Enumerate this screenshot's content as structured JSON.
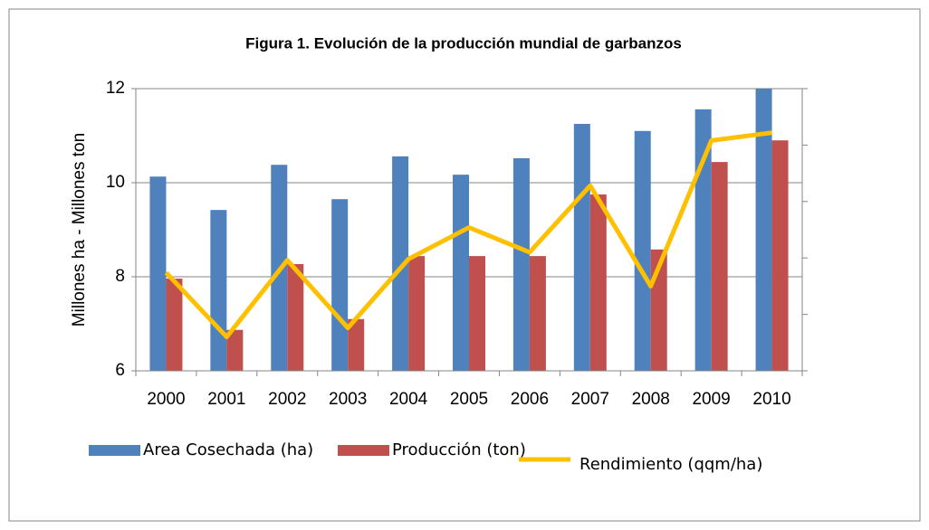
{
  "chart_data": {
    "type": "bar_line",
    "title": "Figura 1. Evolución  de la producción mundial de garbanzos",
    "ylabel": "Millones ha - Millones ton",
    "categories": [
      "2000",
      "2001",
      "2002",
      "2003",
      "2004",
      "2005",
      "2006",
      "2007",
      "2008",
      "2009",
      "2010"
    ],
    "series": [
      {
        "name": "Area Cosechada (ha)",
        "type": "bar",
        "color": "#4f81bd",
        "values": [
          10.13,
          9.42,
          10.38,
          9.65,
          10.56,
          10.17,
          10.52,
          11.25,
          11.1,
          11.56,
          12.0
        ]
      },
      {
        "name": "Producción (ton)",
        "type": "bar",
        "color": "#c0504d",
        "values": [
          7.96,
          6.87,
          8.27,
          7.1,
          8.44,
          8.44,
          8.44,
          9.75,
          8.58,
          10.44,
          10.9
        ]
      },
      {
        "name": "Rendimiento (qqm/ha)",
        "type": "line",
        "axis": "y2",
        "color": "#ffc000",
        "values": [
          7.37,
          6.8,
          7.48,
          6.88,
          7.49,
          7.77,
          7.55,
          8.14,
          7.25,
          8.54,
          8.61
        ]
      }
    ],
    "ylim": [
      6,
      12
    ],
    "yticks": [
      6,
      8,
      10,
      12
    ],
    "y2lim": [
      6.5,
      9.0
    ],
    "y2ticks": [
      6.5,
      7.0,
      7.5,
      8.0,
      8.5,
      9.0
    ],
    "grid": true,
    "legend": "bottom"
  }
}
